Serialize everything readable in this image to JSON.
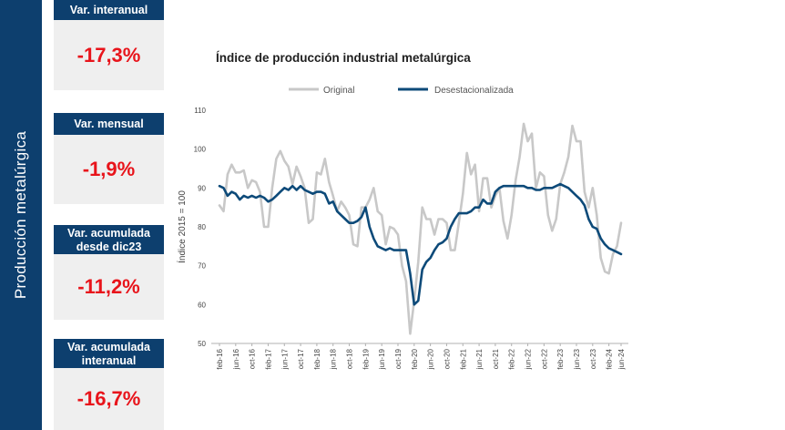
{
  "sidebar": {
    "title": "Producción metalúrgica"
  },
  "kpis": [
    {
      "label": "Var. interanual",
      "value": "-17,3%"
    },
    {
      "label": "Var. mensual",
      "value": "-1,9%"
    },
    {
      "label": "Var. acumulada desde dic23",
      "value": "-11,2%"
    },
    {
      "label": "Var. acumulada interanual",
      "value": "-16,7%"
    }
  ],
  "colors": {
    "panel": "#0d3f6e",
    "kpi_value": "#e8141b",
    "original": "#c8c8c8",
    "sa": "#0d4a79"
  },
  "chart_data": {
    "type": "line",
    "title": "Índice de producción industrial metalúrgica",
    "ylabel": "Índice 2015 = 100",
    "xlabel": "",
    "ylim": [
      50,
      110
    ],
    "yticks": [
      50,
      60,
      70,
      80,
      90,
      100,
      110
    ],
    "legend_position": "top",
    "grid": false,
    "x_start": "feb-16",
    "xtick_labels": [
      "feb-16",
      "jun-16",
      "oct-16",
      "feb-17",
      "jun-17",
      "oct-17",
      "feb-18",
      "jun-18",
      "oct-18",
      "feb-19",
      "jun-19",
      "oct-19",
      "feb-20",
      "jun-20",
      "oct-20",
      "feb-21",
      "jun-21",
      "oct-21",
      "feb-22",
      "jun-22",
      "oct-22",
      "feb-23",
      "jun-23",
      "oct-23",
      "feb-24",
      "jun-24"
    ],
    "series": [
      {
        "name": "Original",
        "color": "#c8c8c8",
        "values": [
          85.5,
          84.0,
          93.5,
          96.0,
          94.0,
          94.0,
          94.5,
          90.0,
          92.0,
          91.5,
          89.0,
          80.0,
          80.0,
          90.0,
          97.5,
          99.5,
          97.0,
          95.5,
          91.0,
          95.5,
          93.0,
          90.0,
          81.0,
          82.0,
          94.0,
          93.5,
          97.5,
          91.5,
          88.0,
          84.0,
          86.5,
          85.0,
          83.0,
          75.5,
          75.0,
          85.0,
          85.0,
          87.0,
          90.0,
          84.0,
          83.0,
          75.5,
          80.0,
          79.5,
          78.0,
          70.0,
          66.0,
          52.5,
          61.0,
          71.0,
          85.0,
          82.0,
          82.0,
          78.0,
          82.0,
          82.0,
          81.0,
          74.0,
          74.0,
          81.0,
          88.5,
          99.0,
          93.5,
          96.0,
          84.0,
          92.5,
          92.5,
          85.0,
          88.0,
          90.0,
          81.5,
          77.0,
          83.0,
          92.0,
          98.0,
          106.5,
          102.0,
          104.0,
          90.0,
          94.0,
          93.0,
          83.0,
          79.0,
          82.0,
          91.0,
          94.0,
          98.0,
          106.0,
          102.0,
          102.0,
          89.0,
          85.0,
          90.0,
          83.0,
          72.0,
          68.5,
          68.0,
          73.0,
          75.0,
          81.0
        ]
      },
      {
        "name": "Desestacionalizada",
        "color": "#0d4a79",
        "values": [
          90.5,
          90.0,
          88.0,
          89.0,
          88.5,
          87.0,
          88.0,
          87.5,
          88.0,
          87.5,
          88.0,
          87.5,
          86.5,
          87.0,
          88.0,
          89.0,
          90.0,
          89.5,
          90.5,
          89.5,
          90.5,
          89.5,
          89.0,
          88.5,
          89.0,
          89.0,
          88.5,
          86.0,
          86.5,
          84.0,
          83.0,
          82.0,
          81.0,
          81.0,
          81.5,
          82.5,
          85.0,
          80.0,
          77.0,
          75.0,
          74.5,
          74.0,
          74.5,
          74.0,
          74.0,
          74.0,
          74.0,
          68.0,
          60.0,
          61.0,
          69.0,
          71.0,
          72.0,
          74.0,
          75.5,
          76.0,
          77.0,
          80.0,
          82.0,
          83.5,
          83.5,
          83.5,
          84.0,
          85.0,
          85.0,
          87.0,
          86.0,
          86.0,
          89.0,
          90.0,
          90.5,
          90.5,
          90.5,
          90.5,
          90.5,
          90.5,
          90.0,
          90.0,
          89.5,
          89.5,
          90.0,
          90.0,
          90.0,
          90.5,
          91.0,
          90.5,
          90.0,
          89.0,
          88.0,
          87.0,
          85.5,
          82.0,
          80.0,
          79.5,
          77.0,
          75.5,
          74.5,
          74.0,
          73.5,
          73.0
        ]
      }
    ]
  }
}
